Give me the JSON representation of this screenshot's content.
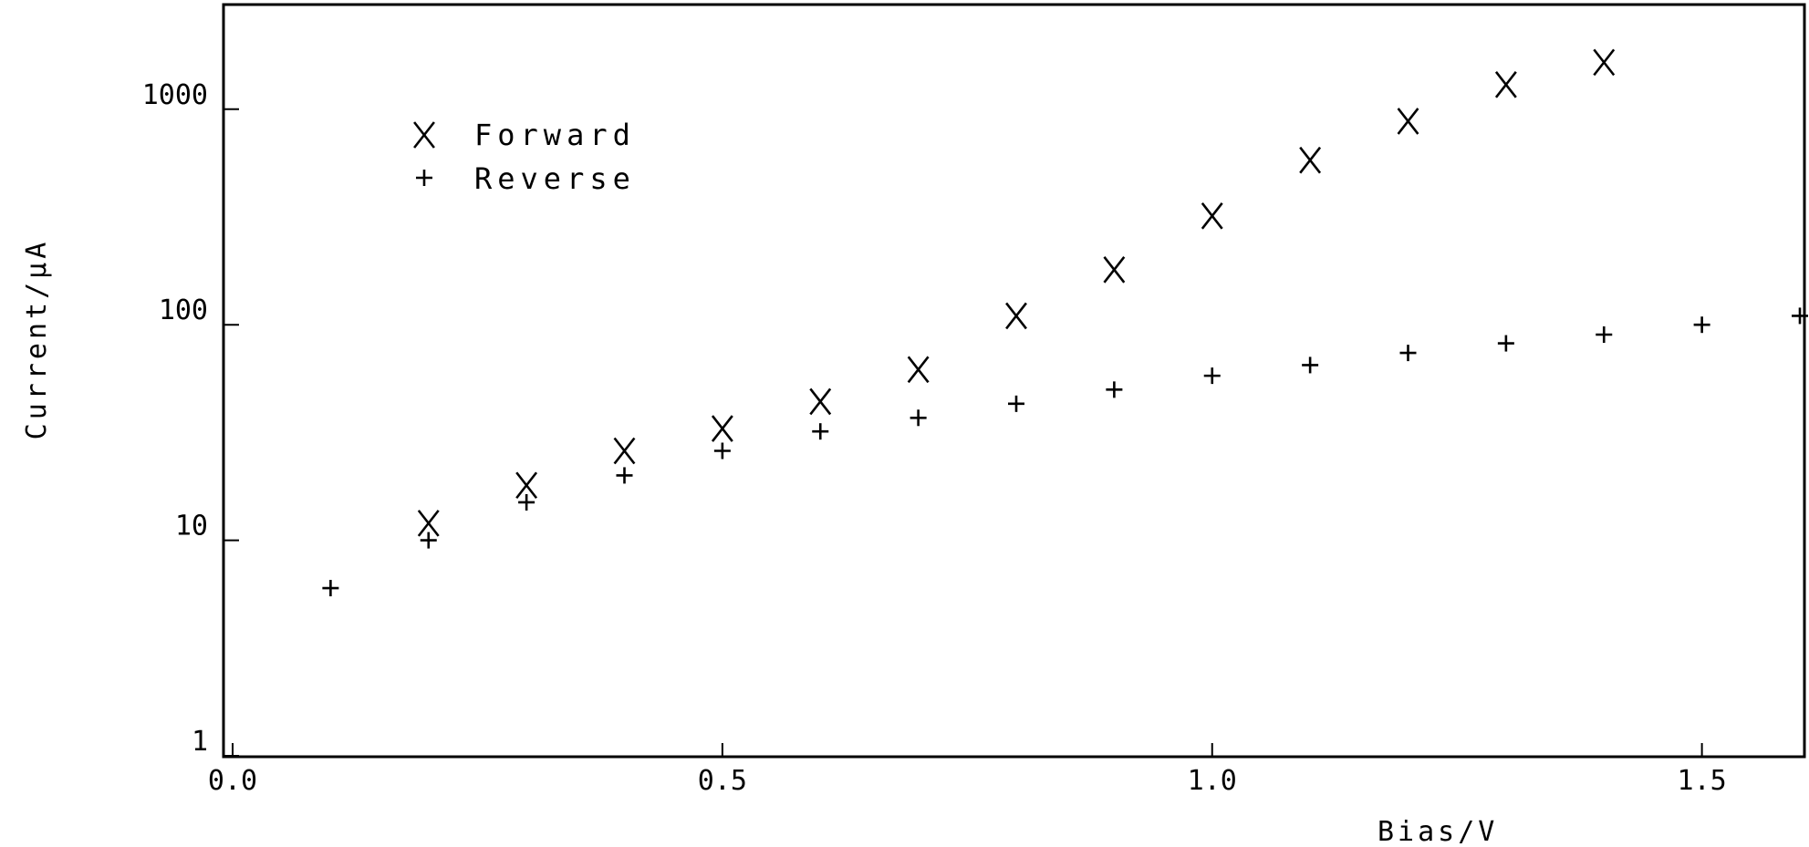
{
  "chart_data": {
    "type": "scatter",
    "xlabel": "Bias/V",
    "ylabel": "Current/µA",
    "x_ticks": [
      "0.0",
      "0.5",
      "1.0",
      "1.5"
    ],
    "y_ticks": [
      "1",
      "10",
      "100",
      "1000"
    ],
    "xlim": [
      0.0,
      1.6
    ],
    "ylim": [
      1,
      3000
    ],
    "y_scale": "log",
    "grid": false,
    "legend_position": "top-left",
    "series": [
      {
        "name": "Forward",
        "marker": "x",
        "points": [
          {
            "x": 0.2,
            "y": 12
          },
          {
            "x": 0.3,
            "y": 18
          },
          {
            "x": 0.4,
            "y": 26
          },
          {
            "x": 0.5,
            "y": 33
          },
          {
            "x": 0.6,
            "y": 44
          },
          {
            "x": 0.7,
            "y": 62
          },
          {
            "x": 0.8,
            "y": 110
          },
          {
            "x": 0.9,
            "y": 180
          },
          {
            "x": 1.0,
            "y": 320
          },
          {
            "x": 1.1,
            "y": 580
          },
          {
            "x": 1.2,
            "y": 880
          },
          {
            "x": 1.3,
            "y": 1300
          },
          {
            "x": 1.4,
            "y": 1650
          }
        ]
      },
      {
        "name": "Reverse",
        "marker": "+",
        "points": [
          {
            "x": 0.1,
            "y": 6
          },
          {
            "x": 0.2,
            "y": 10
          },
          {
            "x": 0.3,
            "y": 15
          },
          {
            "x": 0.4,
            "y": 20
          },
          {
            "x": 0.5,
            "y": 26
          },
          {
            "x": 0.6,
            "y": 32
          },
          {
            "x": 0.7,
            "y": 37
          },
          {
            "x": 0.8,
            "y": 43
          },
          {
            "x": 0.9,
            "y": 50
          },
          {
            "x": 1.0,
            "y": 58
          },
          {
            "x": 1.1,
            "y": 65
          },
          {
            "x": 1.2,
            "y": 74
          },
          {
            "x": 1.3,
            "y": 82
          },
          {
            "x": 1.4,
            "y": 90
          },
          {
            "x": 1.5,
            "y": 100
          },
          {
            "x": 1.6,
            "y": 110
          }
        ]
      }
    ]
  }
}
